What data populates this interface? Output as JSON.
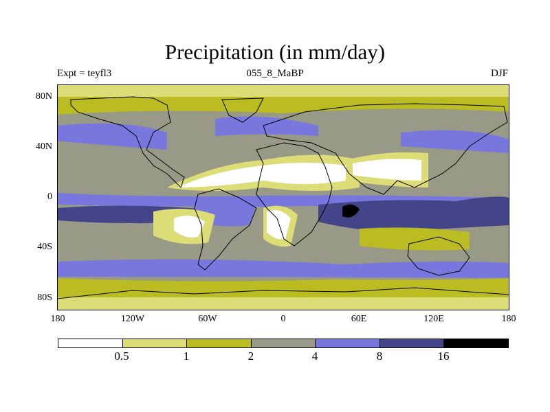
{
  "title": "Precipitation (in mm/day)",
  "header": {
    "experiment": "Expt = teyfl3",
    "period": "055_8_MaBP",
    "season": "DJF"
  },
  "axes": {
    "lat_labels": [
      "80N",
      "40N",
      "0",
      "40S",
      "80S"
    ],
    "lon_labels": [
      "180",
      "120W",
      "60W",
      "0",
      "60E",
      "120E",
      "180"
    ]
  },
  "colorbar": {
    "thresholds": [
      "0.5",
      "1",
      "2",
      "4",
      "8",
      "16"
    ],
    "colors": [
      "#ffffff",
      "#dddd77",
      "#bbbb22",
      "#999988",
      "#7777dd",
      "#444488",
      "#000000"
    ]
  },
  "colors": {
    "land_outline": "#000000"
  }
}
